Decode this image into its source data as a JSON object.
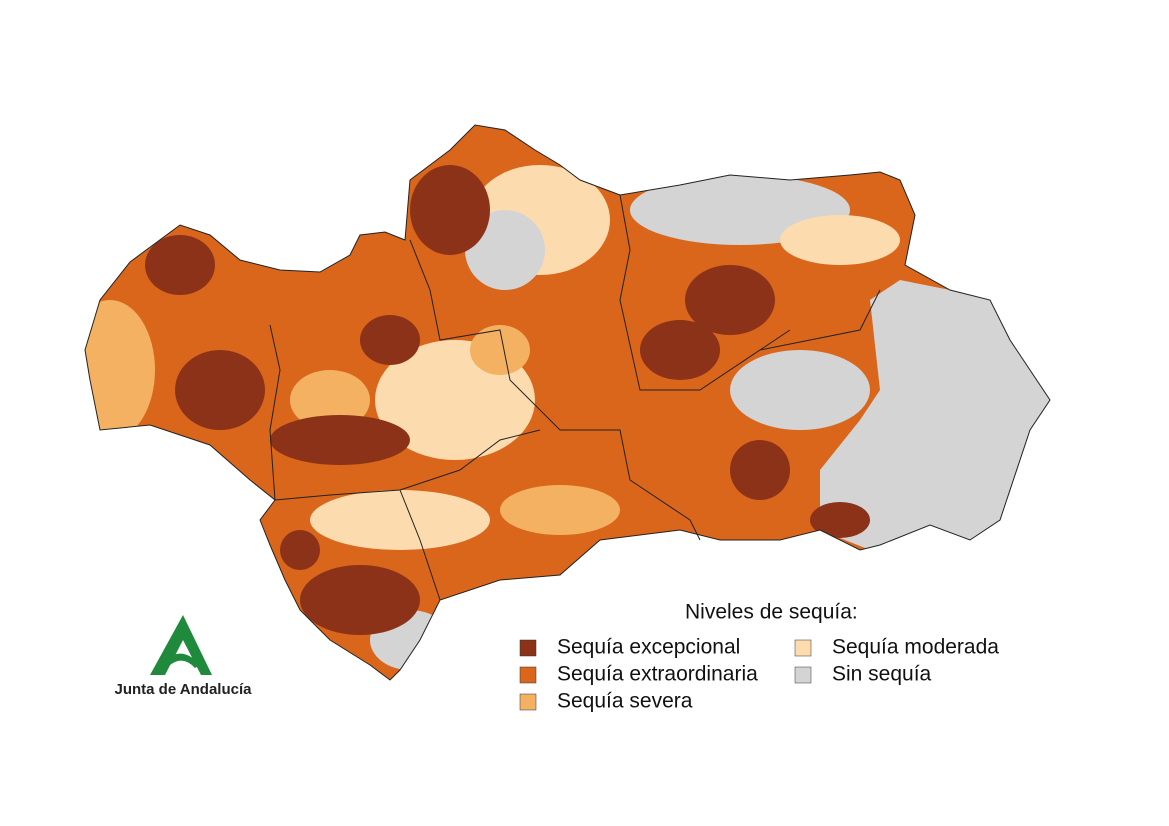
{
  "legend": {
    "title": "Niveles de sequía:",
    "items": [
      {
        "label": "Sequía excepcional",
        "color": "#8b3219"
      },
      {
        "label": "Sequía extraordinaria",
        "color": "#d9661a"
      },
      {
        "label": "Sequía severa",
        "color": "#f4b162"
      },
      {
        "label": "Sequía moderada",
        "color": "#fcdcae"
      },
      {
        "label": "Sin sequía",
        "color": "#d4d4d4"
      }
    ]
  },
  "logo": {
    "text": "Junta de Andalucía"
  }
}
